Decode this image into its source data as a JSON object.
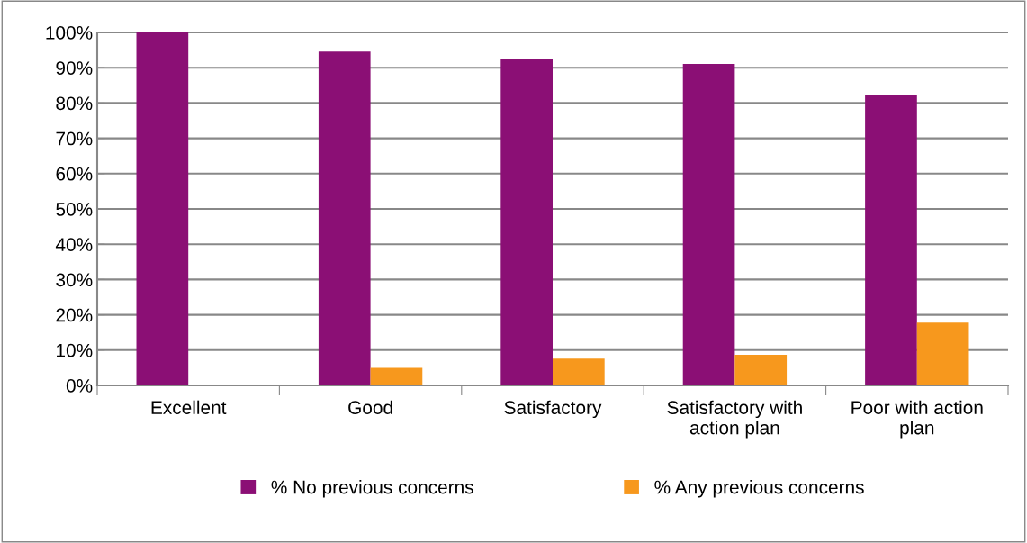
{
  "chart_data": {
    "type": "bar",
    "categories": [
      "Excellent",
      "Good",
      "Satisfactory",
      "Satisfactory with\naction plan",
      "Poor with action\nplan"
    ],
    "series": [
      {
        "name": "% No previous concerns",
        "color": "#8b0f75",
        "values": [
          100,
          94.6,
          92.6,
          91.1,
          82.4
        ]
      },
      {
        "name": "% Any previous concerns",
        "color": "#f7981d",
        "values": [
          0,
          5.0,
          7.6,
          8.7,
          17.8
        ]
      }
    ],
    "ylim": [
      0,
      100
    ],
    "yticks": [
      {
        "value": 0,
        "label": "0%"
      },
      {
        "value": 10,
        "label": "10%"
      },
      {
        "value": 20,
        "label": "20%"
      },
      {
        "value": 30,
        "label": "30%"
      },
      {
        "value": 40,
        "label": "40%"
      },
      {
        "value": 50,
        "label": "50%"
      },
      {
        "value": 60,
        "label": "60%"
      },
      {
        "value": 70,
        "label": "70%"
      },
      {
        "value": 80,
        "label": "80%"
      },
      {
        "value": 90,
        "label": "90%"
      },
      {
        "value": 100,
        "label": "100%"
      }
    ],
    "grid": "y",
    "legend": "bottom"
  }
}
